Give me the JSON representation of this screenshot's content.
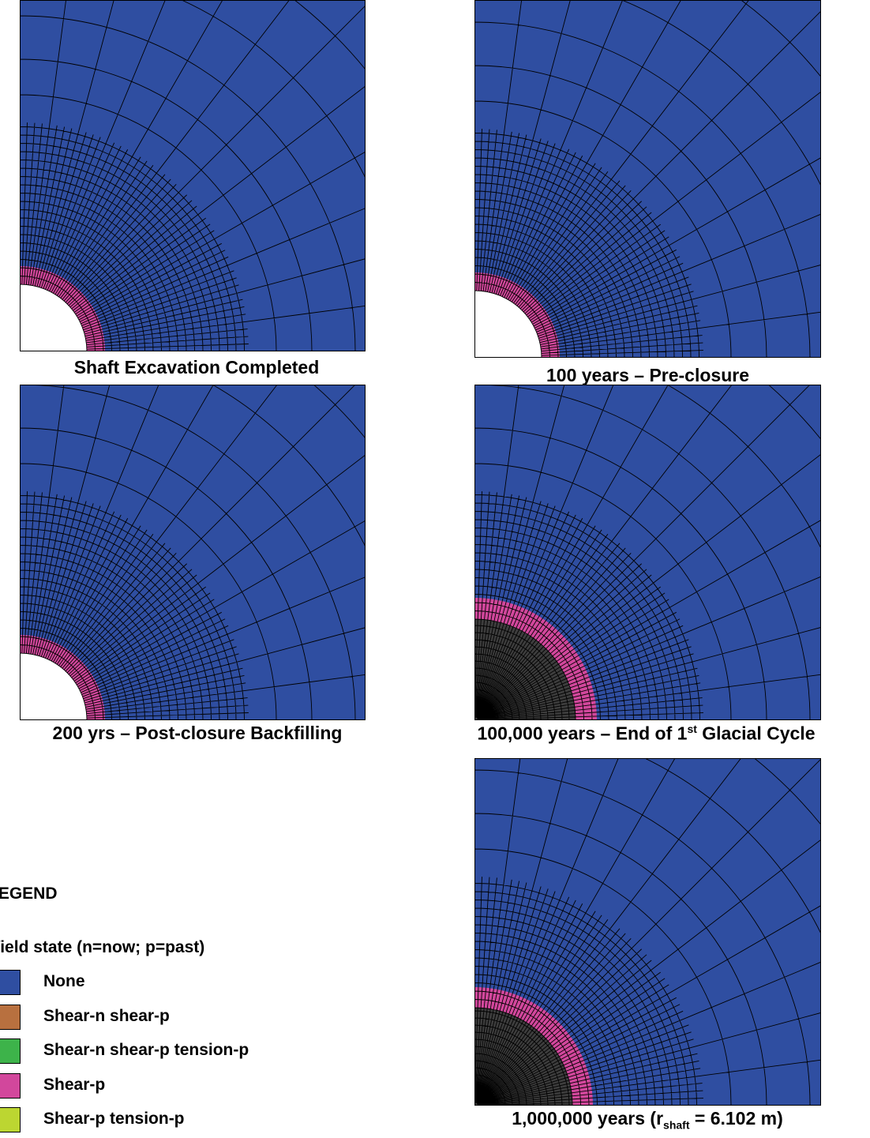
{
  "panels": [
    {
      "caption": "Shaft Excavation Completed"
    },
    {
      "caption": "100 years – Pre-closure"
    },
    {
      "caption": "200 yrs – Post-closure Backfilling"
    },
    {
      "caption": {
        "before": "100,000 years – End of 1",
        "sup": "st",
        "after": " Glacial Cycle"
      }
    },
    {
      "caption": {
        "before": "1,000,000 years (r",
        "sub": "shaft",
        "after": " = 6.102 m)"
      }
    }
  ],
  "legend": {
    "title": "LEGEND",
    "subtitle": "Yield state (n=now; p=past)",
    "items": [
      {
        "label": "None",
        "color": "#2f4ea1"
      },
      {
        "label": "Shear-n shear-p",
        "color": "#b8703f"
      },
      {
        "label": "Shear-n shear-p tension-p",
        "color": "#3db34a"
      },
      {
        "label": "Shear-p",
        "color": "#d2479c"
      },
      {
        "label": "Shear-p tension-p",
        "color": "#bcd631"
      }
    ]
  }
}
